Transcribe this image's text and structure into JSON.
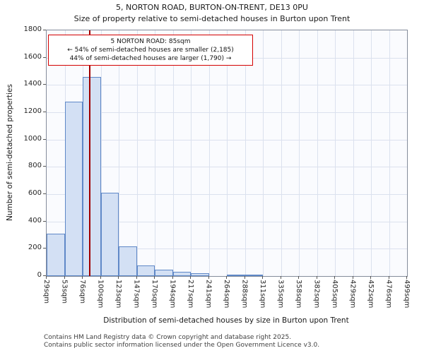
{
  "title": "5, NORTON ROAD, BURTON-ON-TRENT, DE13 0PU",
  "subtitle": "Size of property relative to semi-detached houses in Burton upon Trent",
  "annotation": {
    "line1": "5 NORTON ROAD: 85sqm",
    "line2": "← 54% of semi-detached houses are smaller (2,185)",
    "line3": "44% of semi-detached houses are larger (1,790) →"
  },
  "footer": {
    "line1": "Contains HM Land Registry data © Crown copyright and database right 2025.",
    "line2": "Contains public sector information licensed under the Open Government Licence v3.0."
  },
  "chart_data": {
    "type": "bar",
    "title": "Size of property relative to semi-detached houses in Burton upon Trent",
    "xlabel": "Distribution of semi-detached houses by size in Burton upon Trent",
    "ylabel": "Number of semi-detached properties",
    "ylim": [
      0,
      1800
    ],
    "ytick_step": 200,
    "grid": true,
    "legend": null,
    "bin_edges_sqm": [
      29,
      53,
      76,
      100,
      123,
      147,
      170,
      194,
      217,
      241,
      264,
      288,
      311,
      335,
      358,
      382,
      405,
      429,
      452,
      476,
      499
    ],
    "tick_labels": [
      "29sqm",
      "53sqm",
      "76sqm",
      "100sqm",
      "123sqm",
      "147sqm",
      "170sqm",
      "194sqm",
      "217sqm",
      "241sqm",
      "264sqm",
      "288sqm",
      "311sqm",
      "335sqm",
      "358sqm",
      "382sqm",
      "405sqm",
      "429sqm",
      "452sqm",
      "476sqm",
      "499sqm"
    ],
    "values": [
      310,
      1280,
      1460,
      610,
      215,
      75,
      48,
      30,
      20,
      0,
      10,
      10,
      0,
      0,
      0,
      0,
      0,
      0,
      0,
      0
    ],
    "marker_value_sqm": 85,
    "marker_color": "#a00000",
    "bar_fill": "#d3e0f4",
    "bar_border": "#5f88c7"
  }
}
